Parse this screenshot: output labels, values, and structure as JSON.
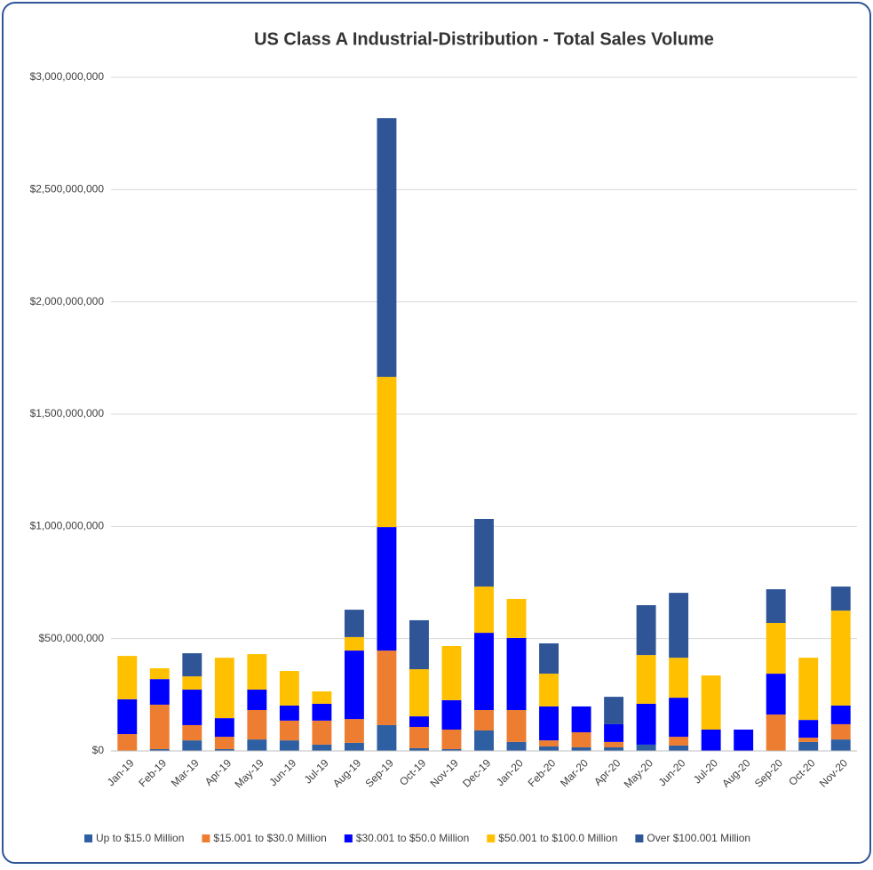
{
  "chart_data": {
    "type": "stacked-bar",
    "title": "US Class A Industrial-Distribution - Total Sales Volume",
    "categories": [
      "Jan-19",
      "Feb-19",
      "Mar-19",
      "Apr-19",
      "May-19",
      "Jun-19",
      "Jul-19",
      "Aug-19",
      "Sep-19",
      "Oct-19",
      "Nov-19",
      "Dec-19",
      "Jan-20",
      "Feb-20",
      "Mar-20",
      "Apr-20",
      "May-20",
      "Jun-20",
      "Jul-20",
      "Aug-20",
      "Sep-20",
      "Oct-20",
      "Nov-20"
    ],
    "series": [
      {
        "name": "Up to $15.0 Million",
        "color": "#2e5fa3",
        "values": [
          0,
          8000000,
          47000000,
          8000000,
          51000000,
          47000000,
          28000000,
          36000000,
          115000000,
          12000000,
          8000000,
          91000000,
          40000000,
          20000000,
          16000000,
          16000000,
          28000000,
          24000000,
          0,
          0,
          0,
          40000000,
          51000000
        ]
      },
      {
        "name": "$15.001 to $30.0 Million",
        "color": "#ed7d31",
        "values": [
          75000000,
          198000000,
          68000000,
          55000000,
          131000000,
          88000000,
          107000000,
          106000000,
          332000000,
          95000000,
          87000000,
          91000000,
          142000000,
          27000000,
          67000000,
          24000000,
          0,
          39000000,
          0,
          0,
          162000000,
          19000000,
          68000000
        ]
      },
      {
        "name": "$30.001 to $50.0 Million",
        "color": "#0000ff",
        "values": [
          155000000,
          114000000,
          158000000,
          83000000,
          91000000,
          67000000,
          75000000,
          305000000,
          550000000,
          47000000,
          131000000,
          344000000,
          321000000,
          151000000,
          115000000,
          79000000,
          182000000,
          174000000,
          95000000,
          95000000,
          182000000,
          79000000,
          83000000
        ]
      },
      {
        "name": "$50.001 to $100.0 Million",
        "color": "#ffc000",
        "values": [
          193000000,
          48000000,
          59000000,
          269000000,
          158000000,
          154000000,
          55000000,
          60000000,
          669000000,
          210000000,
          241000000,
          206000000,
          174000000,
          146000000,
          0,
          0,
          217000000,
          178000000,
          241000000,
          0,
          226000000,
          277000000,
          423000000
        ]
      },
      {
        "name": "Over $100.001 Million",
        "color": "#2f5597",
        "values": [
          0,
          0,
          103000000,
          0,
          0,
          0,
          0,
          122000000,
          1152000000,
          218000000,
          0,
          301000000,
          0,
          135000000,
          0,
          122000000,
          222000000,
          289000000,
          0,
          0,
          150000000,
          0,
          107000000
        ]
      }
    ],
    "ylim": [
      0,
      3000000000
    ],
    "yticks": [
      {
        "value": 0,
        "label": "$0"
      },
      {
        "value": 500000000,
        "label": "$500,000,000"
      },
      {
        "value": 1000000000,
        "label": "$1,000,000,000"
      },
      {
        "value": 1500000000,
        "label": "$1,500,000,000"
      },
      {
        "value": 2000000000,
        "label": "$2,000,000,000"
      },
      {
        "value": 2500000000,
        "label": "$2,500,000,000"
      },
      {
        "value": 3000000000,
        "label": "$3,000,000,000"
      }
    ],
    "grid": true,
    "legend": "bottom"
  }
}
